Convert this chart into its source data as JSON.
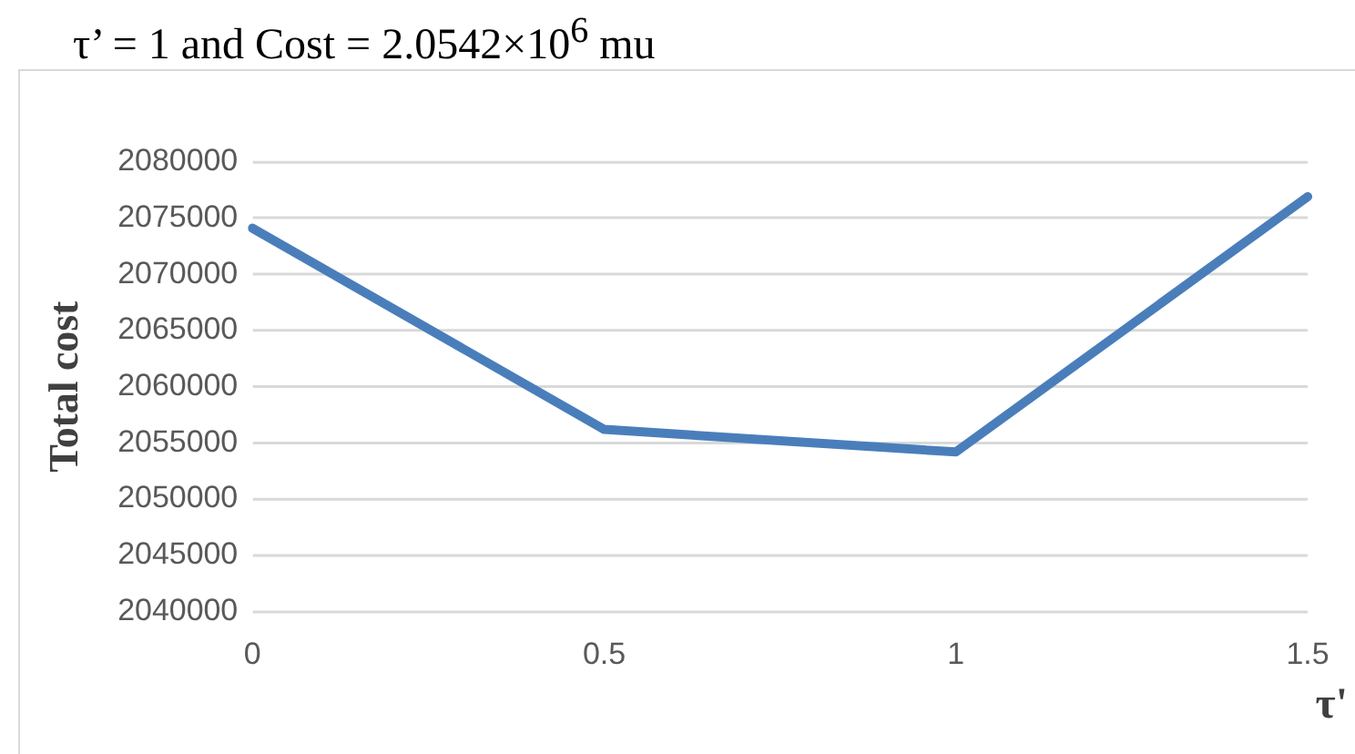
{
  "chart_data": {
    "type": "line",
    "title": "τ’ = 1 and Cost = 2.0542×10$^{6}$ mu",
    "xlabel": "τ'",
    "ylabel": "Total cost",
    "categories": [
      "0",
      "0.5",
      "1",
      "1.5"
    ],
    "series": [
      {
        "color": "#4a7ebb",
        "values": [
          2074100,
          2056200,
          2054200,
          2076900
        ]
      }
    ],
    "ylim": [
      2040000,
      2080000
    ],
    "yticks": [
      2040000,
      2045000,
      2050000,
      2055000,
      2060000,
      2065000,
      2070000,
      2075000,
      2080000
    ],
    "grid": "y",
    "legend": false,
    "marker": "none",
    "line_style": "solid"
  }
}
